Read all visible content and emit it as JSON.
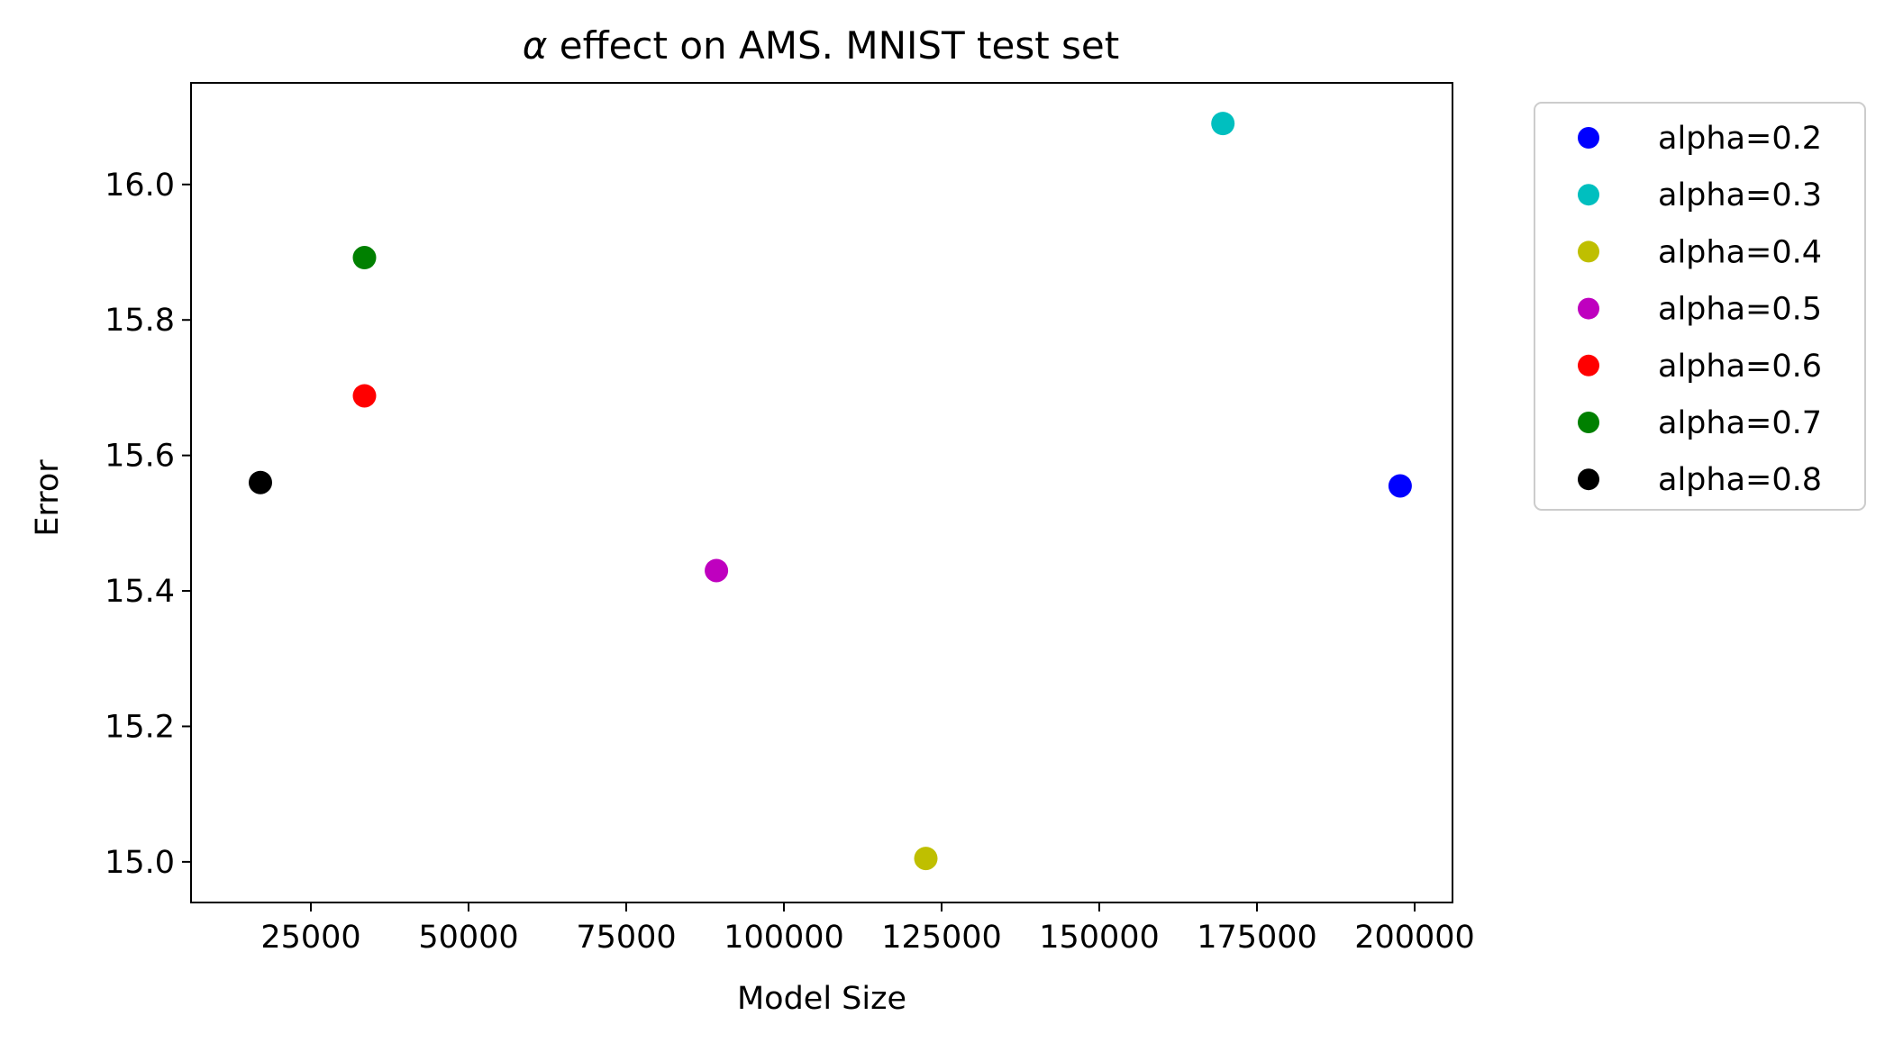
{
  "chart_data": {
    "type": "scatter",
    "title_prefix": "α",
    "title": " effect on AMS. MNIST test set",
    "xlabel": "Model Size",
    "ylabel": "Error",
    "xlim": [
      6000,
      206000
    ],
    "ylim": [
      14.94,
      16.15
    ],
    "xticks": [
      25000,
      50000,
      75000,
      100000,
      125000,
      150000,
      175000,
      200000
    ],
    "xtick_labels": [
      "25000",
      "50000",
      "75000",
      "100000",
      "125000",
      "150000",
      "175000",
      "200000"
    ],
    "yticks": [
      15.0,
      15.2,
      15.4,
      15.6,
      15.8,
      16.0
    ],
    "ytick_labels": [
      "15.0",
      "15.2",
      "15.4",
      "15.6",
      "15.8",
      "16.0"
    ],
    "grid": false,
    "legend_position": "outside-right-top",
    "series": [
      {
        "name": "alpha=0.2",
        "color": "#0000ff",
        "x": 197700,
        "y": 15.555
      },
      {
        "name": "alpha=0.3",
        "color": "#00bfbf",
        "x": 169600,
        "y": 16.09
      },
      {
        "name": "alpha=0.4",
        "color": "#bfbf00",
        "x": 122500,
        "y": 15.005
      },
      {
        "name": "alpha=0.5",
        "color": "#bf00bf",
        "x": 89300,
        "y": 15.43
      },
      {
        "name": "alpha=0.6",
        "color": "#ff0000",
        "x": 33500,
        "y": 15.688
      },
      {
        "name": "alpha=0.7",
        "color": "#008000",
        "x": 33500,
        "y": 15.892
      },
      {
        "name": "alpha=0.8",
        "color": "#000000",
        "x": 17000,
        "y": 15.56
      }
    ]
  }
}
